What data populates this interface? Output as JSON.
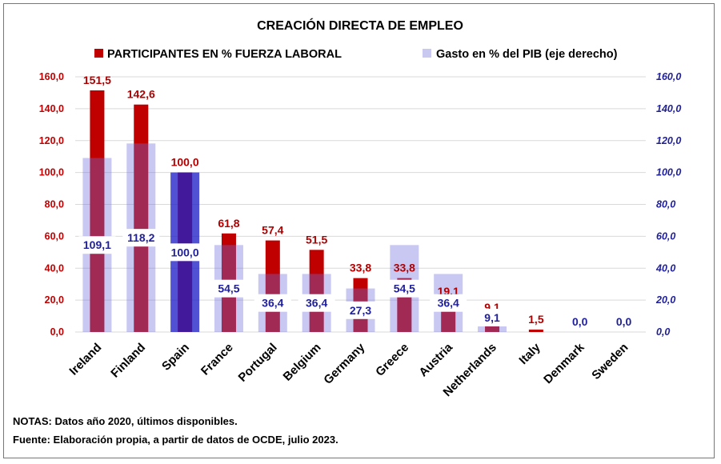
{
  "chart_data": {
    "type": "bar",
    "title": "CREACIÓN DIRECTA DE EMPLEO",
    "categories": [
      "Ireland",
      "Finland",
      "Spain",
      "France",
      "Portugal",
      "Belgium",
      "Germany",
      "Greece",
      "Austria",
      "Netherlands",
      "Italy",
      "Denmark",
      "Sweden"
    ],
    "series": [
      {
        "name": "PARTICIPANTES EN % FUERZA LABORAL",
        "axis": "left",
        "color": "#c00000",
        "values": [
          151.5,
          142.6,
          100.0,
          61.8,
          57.4,
          51.5,
          33.8,
          33.8,
          19.1,
          9.1,
          1.5,
          0.0,
          0.0
        ],
        "labels": [
          "151,5",
          "142,6",
          "100,0",
          "61,8",
          "57,4",
          "51,5",
          "33,8",
          "33,8",
          "19,1",
          "9,1",
          "1,5",
          "0,0",
          "0,0"
        ]
      },
      {
        "name": "Gasto en % del PIB (eje derecho)",
        "axis": "right",
        "color": "#c8c8f0",
        "highlight_color": "#4c4cd8",
        "values": [
          109.1,
          118.2,
          100.0,
          54.5,
          36.4,
          36.4,
          27.3,
          54.5,
          36.4,
          9.1,
          0.0,
          0.0,
          0.0
        ],
        "labels": [
          "109,1",
          "118,2",
          "100,0",
          "54,5",
          "36,4",
          "36,4",
          "27,3",
          "54,5",
          "36,4",
          "9,1",
          "",
          "",
          ""
        ]
      }
    ],
    "ylim": [
      0,
      160
    ],
    "y2lim": [
      0,
      160
    ],
    "yticks": [
      "0,0",
      "20,0",
      "40,0",
      "60,0",
      "80,0",
      "100,0",
      "120,0",
      "140,0",
      "160,0"
    ],
    "y2ticks": [
      "0,0",
      "20,0",
      "40,0",
      "60,0",
      "80,0",
      "100,0",
      "120,0",
      "140,0",
      "160,0"
    ],
    "grid": true,
    "legend": "top"
  },
  "notes": {
    "line1": "NOTAS: Datos año 2020, últimos disponibles.",
    "line2": "Fuente: Elaboración propia, a partir de datos de OCDE, julio 2023."
  }
}
